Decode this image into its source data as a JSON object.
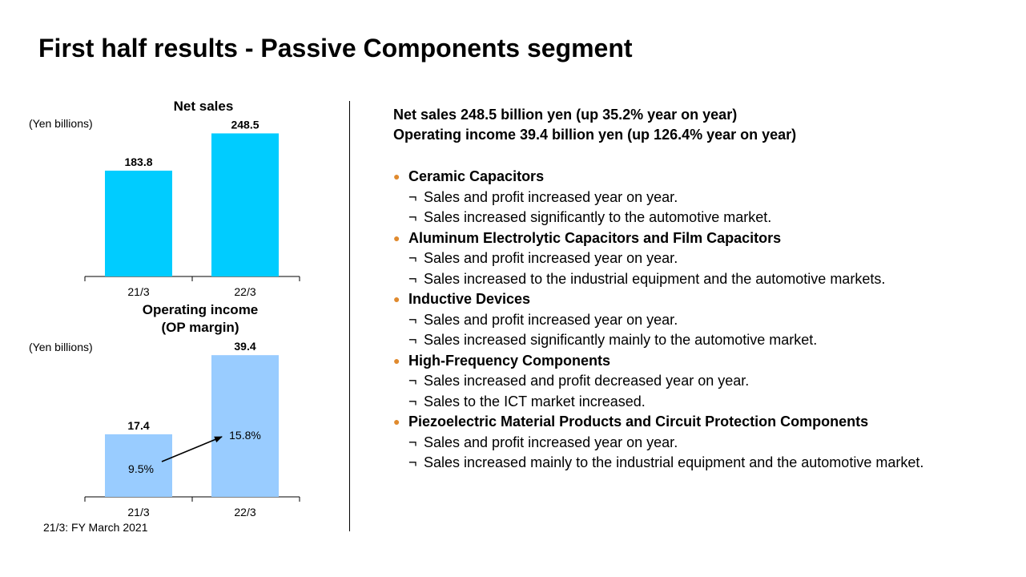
{
  "title": "First half results - Passive Components segment",
  "chart_data": [
    {
      "type": "bar",
      "title": "Net sales",
      "unit_label": "(Yen billions)",
      "categories": [
        "21/3",
        "22/3"
      ],
      "values": [
        183.8,
        248.5
      ],
      "value_labels": [
        "183.8",
        "248.5"
      ],
      "ylim": [
        0,
        270
      ],
      "color": "#00ccff"
    },
    {
      "type": "bar",
      "title_lines": [
        "Operating income",
        "(OP margin)"
      ],
      "unit_label": "(Yen billions)",
      "categories": [
        "21/3",
        "22/3"
      ],
      "values": [
        17.4,
        39.4
      ],
      "value_labels": [
        "17.4",
        "39.4"
      ],
      "margins": [
        "9.5%",
        "15.8%"
      ],
      "ylim": [
        0,
        43
      ],
      "color": "#99ccff"
    }
  ],
  "footnote": "21/3: FY March 2021",
  "summary": [
    "Net sales  248.5 billion yen (up 35.2% year on year)",
    "Operating income  39.4 billion yen (up 126.4% year on year)"
  ],
  "bullet_glyph": "●",
  "sub_mark": "¬",
  "sections": [
    {
      "heading": "Ceramic Capacitors",
      "items": [
        "Sales and profit increased year on year.",
        "Sales increased significantly to the automotive market."
      ]
    },
    {
      "heading": "Aluminum Electrolytic Capacitors and Film Capacitors",
      "items": [
        "Sales and profit increased year on year.",
        "Sales increased to the industrial equipment and the automotive markets."
      ]
    },
    {
      "heading": "Inductive Devices",
      "items": [
        "Sales and profit increased year on year.",
        "Sales increased significantly mainly to the automotive market."
      ]
    },
    {
      "heading": "High-Frequency Components",
      "items": [
        "Sales increased and profit decreased year on year.",
        "Sales to the ICT market increased."
      ]
    },
    {
      "heading": "Piezoelectric Material Products and Circuit Protection Components",
      "items": [
        "Sales and profit increased year on year.",
        "Sales increased mainly to the industrial equipment and the automotive market."
      ]
    }
  ]
}
